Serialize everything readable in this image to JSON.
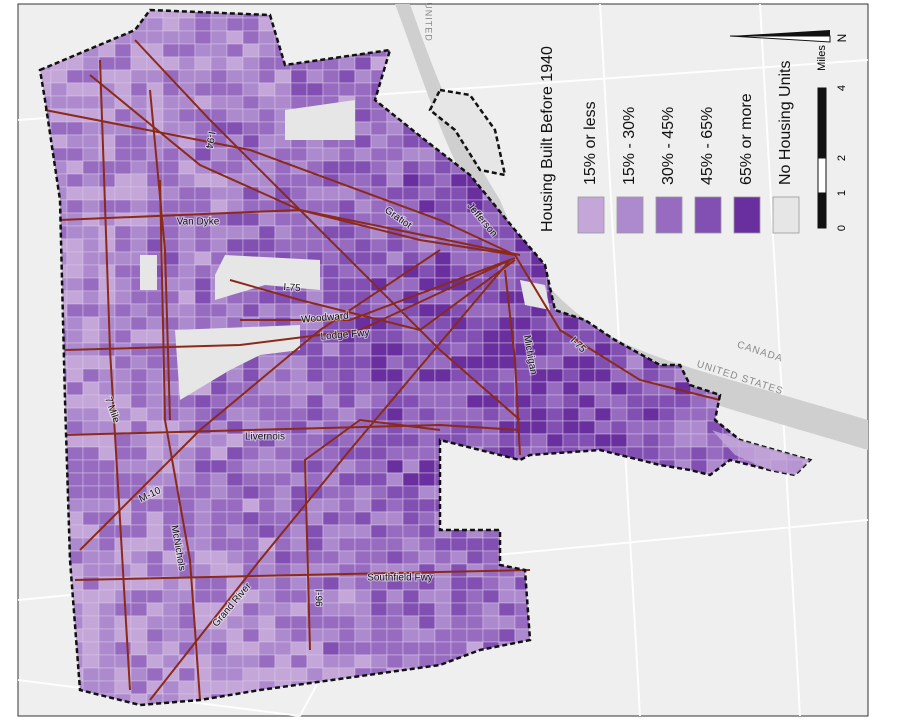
{
  "legend": {
    "title": "Housing Built Before 1940",
    "items": [
      {
        "label": "15% or less",
        "color": "#c4a6d9"
      },
      {
        "label": "15% - 30%",
        "color": "#ad8ace"
      },
      {
        "label": "30% - 45%",
        "color": "#976bc0"
      },
      {
        "label": "45% - 65%",
        "color": "#8150b2"
      },
      {
        "label": "65% or more",
        "color": "#6a2f9f"
      },
      {
        "label": "No Housing Units",
        "color": "#e6e6e6"
      }
    ]
  },
  "scale": {
    "unit": "Miles",
    "ticks": [
      0,
      1,
      2,
      4
    ]
  },
  "north": "N",
  "roads": [
    "I-94",
    "Gratiot",
    "Jefferson",
    "Van Dyke",
    "I-75",
    "Woodward",
    "Lodge Fwy",
    "7 Mile",
    "Livernois",
    "Michigan",
    "I-75",
    "M-10",
    "McNichols",
    "Grand River",
    "I-96",
    "Southfield Fwy"
  ],
  "border_labels": [
    "UNITED STATES",
    "CANADA",
    "UNITED"
  ]
}
